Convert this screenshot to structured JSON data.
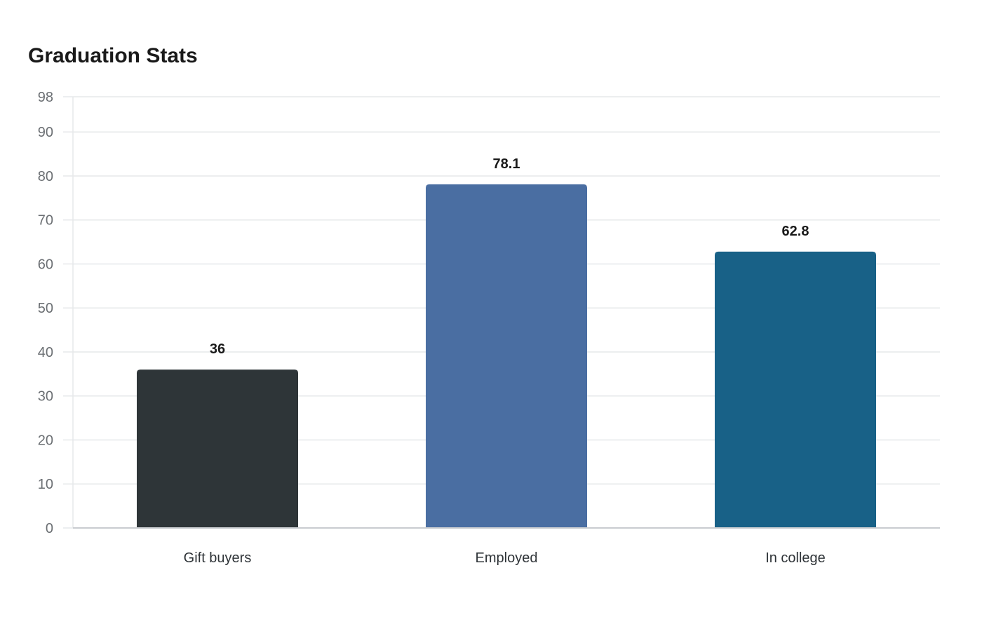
{
  "chart_data": {
    "type": "bar",
    "title": "Graduation Stats",
    "xlabel": "",
    "ylabel": "",
    "categories": [
      "Gift buyers",
      "Employed",
      "In college"
    ],
    "values": [
      36,
      78.1,
      62.8
    ],
    "value_labels": [
      "36",
      "78.1",
      "62.8"
    ],
    "bar_colors": [
      "#2e3538",
      "#4a6ea2",
      "#186187"
    ],
    "ylim": [
      0,
      98
    ],
    "yticks": [
      0,
      10,
      20,
      30,
      40,
      50,
      60,
      70,
      80,
      90,
      98
    ],
    "grid": true,
    "legend": "none"
  },
  "colors": {
    "grid": "#e6e8ea",
    "axis": "#c9ccd0"
  }
}
